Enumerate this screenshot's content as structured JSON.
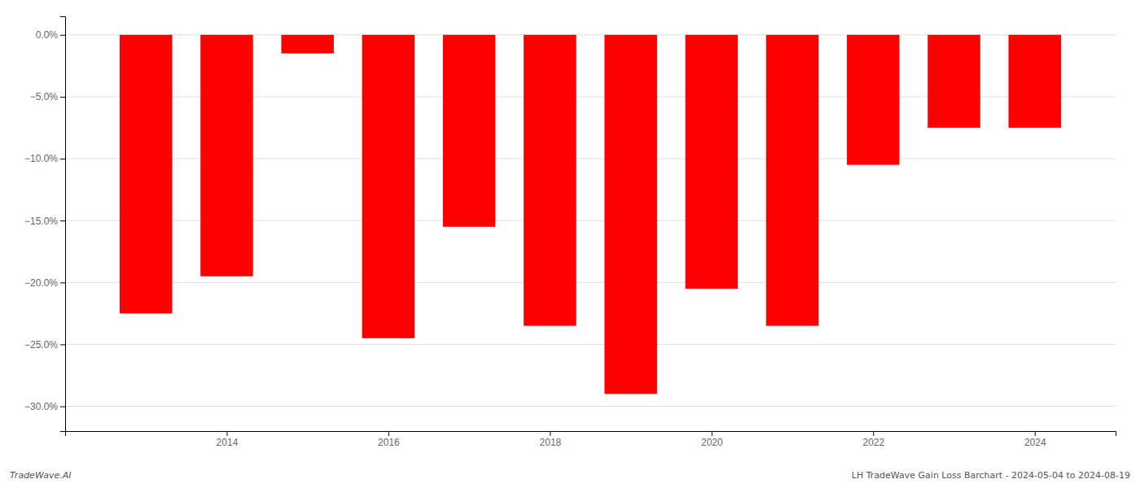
{
  "chart_data": {
    "type": "bar",
    "x": [
      2013,
      2014,
      2015,
      2016,
      2017,
      2018,
      2019,
      2020,
      2021,
      2022,
      2023,
      2024
    ],
    "values": [
      -22.5,
      -19.5,
      -1.5,
      -24.5,
      -15.5,
      -23.5,
      -29.0,
      -20.5,
      -23.5,
      -10.5,
      -7.5,
      -7.5
    ],
    "color": "#ff0000",
    "xlim": [
      2012,
      2025
    ],
    "xticks": [
      2014,
      2016,
      2018,
      2020,
      2022,
      2024
    ],
    "ylim": [
      -32.0,
      1.5
    ],
    "yticks": [
      {
        "value": 0.0,
        "label": "0.0%"
      },
      {
        "value": -5.0,
        "label": "−5.0%"
      },
      {
        "value": -10.0,
        "label": "−10.0%"
      },
      {
        "value": -15.0,
        "label": "−15.0%"
      },
      {
        "value": -20.0,
        "label": "−20.0%"
      },
      {
        "value": -25.0,
        "label": "−25.0%"
      },
      {
        "value": -30.0,
        "label": "−30.0%"
      }
    ],
    "grid": true,
    "annotations": [
      "TradeWave.AI",
      "LH TradeWave Gain Loss Barchart - 2024-05-04 to 2024-08-19"
    ]
  }
}
